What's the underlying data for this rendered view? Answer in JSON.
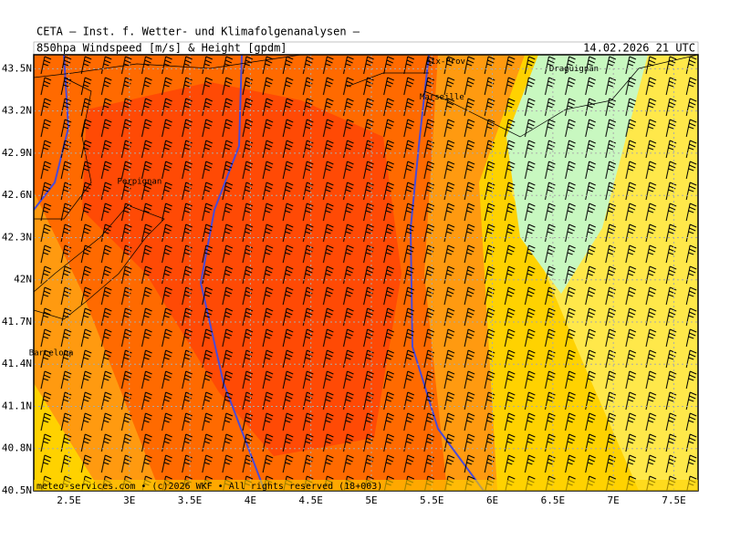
{
  "header": {
    "title": "CETA – Inst. f. Wetter- und Klimafolgenanalysen –",
    "subtitle": "850hpa Windspeed [m/s] & Height [gpdm]",
    "date": "14.02.2026 21 UTC"
  },
  "map": {
    "lonlim": [
      2.21,
      7.7
    ],
    "latlim": [
      40.5,
      43.6
    ],
    "lon_ticks": [
      {
        "value": 2.5,
        "label": "2.5E"
      },
      {
        "value": 3,
        "label": "3E"
      },
      {
        "value": 3.5,
        "label": "3.5E"
      },
      {
        "value": 4,
        "label": "4E"
      },
      {
        "value": 4.5,
        "label": "4.5E"
      },
      {
        "value": 5,
        "label": "5E"
      },
      {
        "value": 5.5,
        "label": "5.5E"
      },
      {
        "value": 6,
        "label": "6E"
      },
      {
        "value": 6.5,
        "label": "6.5E"
      },
      {
        "value": 7,
        "label": "7E"
      },
      {
        "value": 7.5,
        "label": "7.5E"
      }
    ],
    "lat_ticks": [
      {
        "value": 40.5,
        "label": "40.5N"
      },
      {
        "value": 40.8,
        "label": "40.8N"
      },
      {
        "value": 41.1,
        "label": "41.1N"
      },
      {
        "value": 41.4,
        "label": "41.4N"
      },
      {
        "value": 41.7,
        "label": "41.7N"
      },
      {
        "value": 42,
        "label": "42N"
      },
      {
        "value": 42.3,
        "label": "42.3N"
      },
      {
        "value": 42.6,
        "label": "42.6N"
      },
      {
        "value": 42.9,
        "label": "42.9N"
      },
      {
        "value": 43.2,
        "label": "43.2N"
      },
      {
        "value": 43.5,
        "label": "43.5N"
      }
    ],
    "cities": [
      {
        "name": "Aix-Prov",
        "lon": 5.45,
        "lat": 43.55
      },
      {
        "name": "Marseille",
        "lon": 5.4,
        "lat": 43.3
      },
      {
        "name": "Draguignan",
        "lon": 6.47,
        "lat": 43.5
      },
      {
        "name": "Perpignan",
        "lon": 2.9,
        "lat": 42.7
      },
      {
        "name": "Barcelona",
        "lon": 2.17,
        "lat": 41.48
      }
    ]
  },
  "footer": "meteo-services.com • (c)2026 WKF • All rights reserved (18+003)"
}
